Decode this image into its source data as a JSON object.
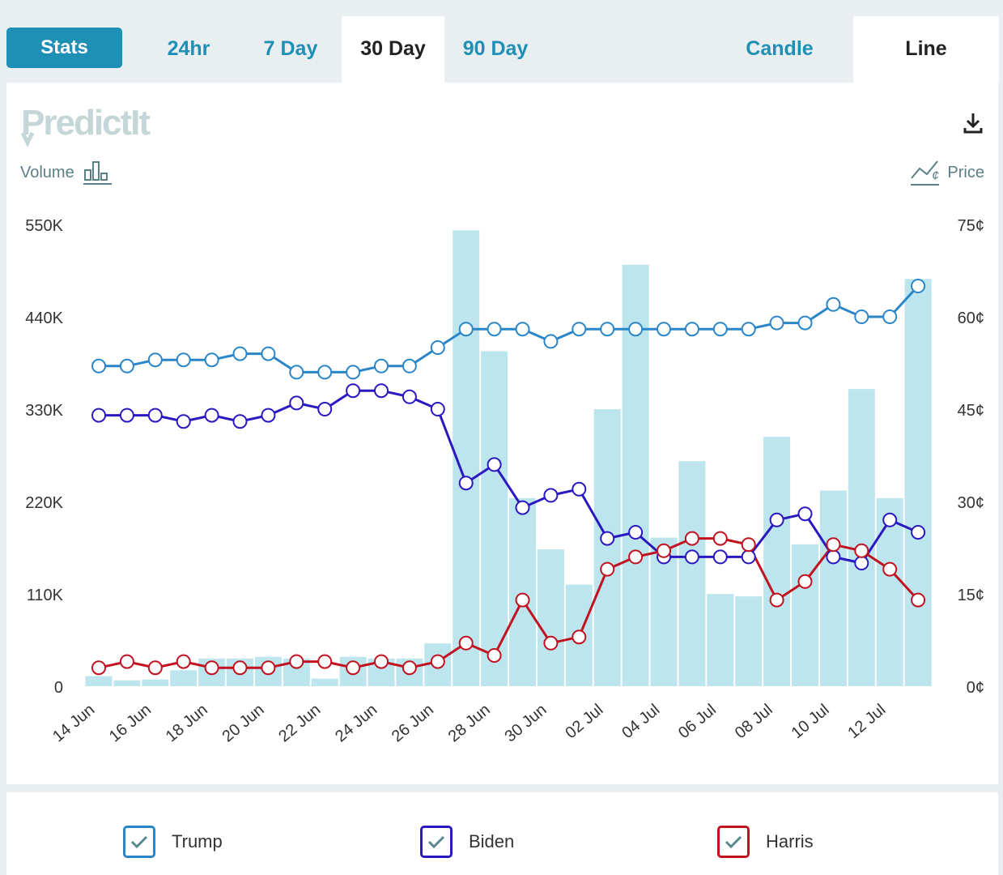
{
  "tabs": {
    "stats": "Stats",
    "h24": "24hr",
    "d7": "7 Day",
    "d30": "30 Day",
    "d90": "90 Day",
    "candle": "Candle",
    "line": "Line"
  },
  "header": {
    "logo": "PredictIt",
    "volume_label": "Volume",
    "price_label": "Price"
  },
  "legend": {
    "trump": "Trump",
    "biden": "Biden",
    "harris": "Harris"
  },
  "colors": {
    "trump": "#2b86c8",
    "biden": "#2a18c0",
    "harris": "#c0121f",
    "volume": "#bde5ee",
    "tab_accent": "#1e8fb5"
  },
  "chart_data": {
    "type": "line",
    "title": "",
    "x": [
      "14 Jun",
      "15 Jun",
      "16 Jun",
      "17 Jun",
      "18 Jun",
      "19 Jun",
      "20 Jun",
      "21 Jun",
      "22 Jun",
      "23 Jun",
      "24 Jun",
      "25 Jun",
      "26 Jun",
      "27 Jun",
      "28 Jun",
      "29 Jun",
      "30 Jun",
      "01 Jul",
      "02 Jul",
      "03 Jul",
      "04 Jul",
      "05 Jul",
      "06 Jul",
      "07 Jul",
      "08 Jul",
      "09 Jul",
      "10 Jul",
      "11 Jul",
      "12 Jul",
      "13 Jul"
    ],
    "x_tick_labels": [
      "14 Jun",
      "16 Jun",
      "18 Jun",
      "20 Jun",
      "22 Jun",
      "24 Jun",
      "26 Jun",
      "28 Jun",
      "30 Jun",
      "02 Jul",
      "04 Jul",
      "06 Jul",
      "08 Jul",
      "10 Jul",
      "12 Jul"
    ],
    "left_axis": {
      "label": "Volume",
      "ticks": [
        "0",
        "110K",
        "220K",
        "330K",
        "440K",
        "550K"
      ],
      "ylim": [
        0,
        550000
      ]
    },
    "right_axis": {
      "label": "Price",
      "ticks": [
        "0¢",
        "15¢",
        "30¢",
        "45¢",
        "60¢",
        "75¢"
      ],
      "ylim": [
        0,
        75
      ]
    },
    "volume": [
      12000,
      7000,
      8000,
      19000,
      33000,
      33000,
      35000,
      33000,
      9000,
      35000,
      33000,
      33000,
      51000,
      543000,
      399000,
      224000,
      163000,
      121000,
      330000,
      502000,
      177000,
      268000,
      110000,
      107000,
      297000,
      169000,
      233000,
      354000,
      224000,
      485000
    ],
    "series": [
      {
        "name": "Trump",
        "values": [
          52,
          52,
          53,
          53,
          53,
          54,
          54,
          51,
          51,
          51,
          52,
          52,
          55,
          58,
          58,
          58,
          56,
          58,
          58,
          58,
          58,
          58,
          58,
          58,
          59,
          59,
          62,
          60,
          60,
          65
        ]
      },
      {
        "name": "Biden",
        "values": [
          44,
          44,
          44,
          43,
          44,
          43,
          44,
          46,
          45,
          48,
          48,
          47,
          45,
          33,
          36,
          29,
          31,
          32,
          24,
          25,
          21,
          21,
          21,
          21,
          27,
          28,
          21,
          20,
          27,
          25
        ]
      },
      {
        "name": "Harris",
        "values": [
          3,
          4,
          3,
          4,
          3,
          3,
          3,
          4,
          4,
          3,
          4,
          3,
          4,
          7,
          5,
          14,
          7,
          8,
          19,
          21,
          22,
          24,
          24,
          23,
          14,
          17,
          23,
          22,
          19,
          14
        ]
      }
    ]
  }
}
